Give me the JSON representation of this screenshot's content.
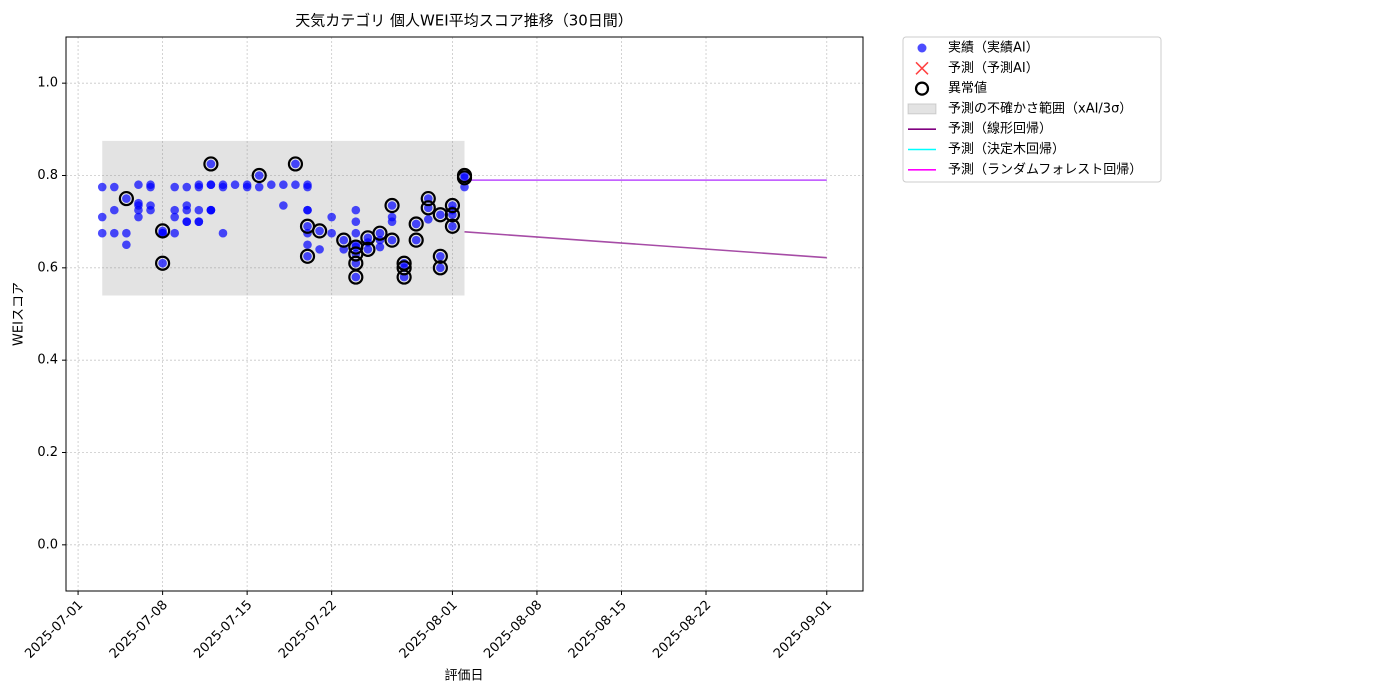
{
  "chart_data": {
    "type": "scatter",
    "title": "天気カテゴリ 個人WEI平均スコア推移（30日間）",
    "x_label": "評価日",
    "y_label": "WEIスコア",
    "xlim": [
      "2025-06-30",
      "2025-09-04"
    ],
    "xticks": [
      "2025-07-01",
      "2025-07-08",
      "2025-07-15",
      "2025-07-22",
      "2025-08-01",
      "2025-08-08",
      "2025-08-15",
      "2025-08-22",
      "2025-09-01"
    ],
    "ylim": [
      -0.1,
      1.1
    ],
    "yticks": [
      {
        "value": 0,
        "label": "0.0"
      },
      0.2,
      0.4,
      0.6,
      0.8,
      {
        "value": 1,
        "label": "1.0"
      }
    ],
    "grid": true,
    "legend": "outside upper right",
    "series": [
      {
        "name": "実績（実績AI）",
        "type": "scatter",
        "marker": "dot",
        "color": "#0000ff",
        "x": [
          "2025-07-03",
          "2025-07-03",
          "2025-07-03",
          "2025-07-04",
          "2025-07-04",
          "2025-07-04",
          "2025-07-05",
          "2025-07-05",
          "2025-07-05",
          "2025-07-06",
          "2025-07-06",
          "2025-07-06",
          "2025-07-06",
          "2025-07-06",
          "2025-07-07",
          "2025-07-07",
          "2025-07-07",
          "2025-07-07",
          "2025-07-08",
          "2025-07-08",
          "2025-07-08",
          "2025-07-08",
          "2025-07-09",
          "2025-07-09",
          "2025-07-09",
          "2025-07-09",
          "2025-07-10",
          "2025-07-10",
          "2025-07-10",
          "2025-07-10",
          "2025-07-10",
          "2025-07-11",
          "2025-07-11",
          "2025-07-11",
          "2025-07-11",
          "2025-07-11",
          "2025-07-12",
          "2025-07-12",
          "2025-07-12",
          "2025-07-12",
          "2025-07-12",
          "2025-07-12",
          "2025-07-13",
          "2025-07-13",
          "2025-07-13",
          "2025-07-14",
          "2025-07-15",
          "2025-07-15",
          "2025-07-16",
          "2025-07-16",
          "2025-07-17",
          "2025-07-18",
          "2025-07-18",
          "2025-07-19",
          "2025-07-19",
          "2025-07-20",
          "2025-07-20",
          "2025-07-20",
          "2025-07-20",
          "2025-07-20",
          "2025-07-20",
          "2025-07-20",
          "2025-07-20",
          "2025-07-21",
          "2025-07-21",
          "2025-07-22",
          "2025-07-22",
          "2025-07-23",
          "2025-07-23",
          "2025-07-24",
          "2025-07-24",
          "2025-07-24",
          "2025-07-24",
          "2025-07-24",
          "2025-07-24",
          "2025-07-24",
          "2025-07-24",
          "2025-07-25",
          "2025-07-25",
          "2025-07-25",
          "2025-07-26",
          "2025-07-26",
          "2025-07-26",
          "2025-07-27",
          "2025-07-27",
          "2025-07-27",
          "2025-07-27",
          "2025-07-28",
          "2025-07-28",
          "2025-07-28",
          "2025-07-29",
          "2025-07-29",
          "2025-07-30",
          "2025-07-30",
          "2025-07-30",
          "2025-07-31",
          "2025-07-31",
          "2025-07-31",
          "2025-08-01",
          "2025-08-01",
          "2025-08-01",
          "2025-08-01",
          "2025-08-02",
          "2025-08-02",
          "2025-08-02"
        ],
        "values": [
          0.775,
          0.71,
          0.675,
          0.725,
          0.775,
          0.675,
          0.675,
          0.65,
          0.75,
          0.74,
          0.735,
          0.78,
          0.71,
          0.725,
          0.78,
          0.735,
          0.775,
          0.725,
          0.675,
          0.61,
          0.68,
          0.675,
          0.775,
          0.725,
          0.71,
          0.675,
          0.7,
          0.775,
          0.735,
          0.725,
          0.7,
          0.775,
          0.78,
          0.7,
          0.7,
          0.725,
          0.78,
          0.725,
          0.825,
          0.725,
          0.78,
          0.725,
          0.78,
          0.775,
          0.675,
          0.78,
          0.78,
          0.775,
          0.8,
          0.775,
          0.78,
          0.735,
          0.78,
          0.825,
          0.78,
          0.775,
          0.78,
          0.725,
          0.69,
          0.725,
          0.65,
          0.625,
          0.675,
          0.68,
          0.64,
          0.71,
          0.675,
          0.66,
          0.64,
          0.725,
          0.7,
          0.675,
          0.65,
          0.58,
          0.63,
          0.61,
          0.645,
          0.64,
          0.665,
          0.655,
          0.675,
          0.645,
          0.66,
          0.735,
          0.66,
          0.7,
          0.71,
          0.61,
          0.58,
          0.6,
          0.66,
          0.695,
          0.75,
          0.73,
          0.705,
          0.6,
          0.625,
          0.715,
          0.735,
          0.715,
          0.69,
          0.725,
          0.8,
          0.795,
          0.775
        ]
      },
      {
        "name": "予測（予測AI）",
        "type": "scatter",
        "marker": "x",
        "color": "#ff0000",
        "x": [],
        "values": []
      },
      {
        "name": "異常値",
        "type": "scatter",
        "marker": "ring",
        "color": "#000000",
        "x": [
          "2025-07-05",
          "2025-07-08",
          "2025-07-08",
          "2025-07-12",
          "2025-07-16",
          "2025-07-19",
          "2025-07-20",
          "2025-07-20",
          "2025-07-21",
          "2025-07-23",
          "2025-07-24",
          "2025-07-24",
          "2025-07-24",
          "2025-07-24",
          "2025-07-25",
          "2025-07-25",
          "2025-07-26",
          "2025-07-27",
          "2025-07-27",
          "2025-07-28",
          "2025-07-28",
          "2025-07-28",
          "2025-07-29",
          "2025-07-29",
          "2025-07-30",
          "2025-07-30",
          "2025-07-31",
          "2025-07-31",
          "2025-07-31",
          "2025-08-01",
          "2025-08-01",
          "2025-08-01",
          "2025-08-02",
          "2025-08-02"
        ],
        "values": [
          0.75,
          0.61,
          0.68,
          0.825,
          0.8,
          0.825,
          0.69,
          0.625,
          0.68,
          0.66,
          0.58,
          0.63,
          0.61,
          0.645,
          0.64,
          0.665,
          0.675,
          0.735,
          0.66,
          0.61,
          0.58,
          0.6,
          0.66,
          0.695,
          0.75,
          0.73,
          0.6,
          0.625,
          0.715,
          0.735,
          0.715,
          0.69,
          0.8,
          0.795
        ]
      },
      {
        "name": "予測の不確かさ範囲（xAI/3σ）",
        "type": "band",
        "color": "#808080",
        "x": [
          "2025-07-03",
          "2025-08-02"
        ],
        "lower": [
          0.54,
          0.54
        ],
        "upper": [
          0.875,
          0.875
        ]
      },
      {
        "name": "予測（線形回帰）",
        "type": "line",
        "color": "#800080",
        "x": [
          "2025-08-02",
          "2025-09-01"
        ],
        "values": [
          0.678,
          0.622
        ]
      },
      {
        "name": "予測（決定木回帰）",
        "type": "line",
        "color": "#00ffff",
        "x": [
          "2025-08-02",
          "2025-09-01"
        ],
        "values": [
          0.79,
          0.79
        ]
      },
      {
        "name": "予測（ランダムフォレスト回帰）",
        "type": "line",
        "color": "#ff00ff",
        "x": [
          "2025-08-02",
          "2025-09-01"
        ],
        "values": [
          0.79,
          0.79
        ]
      }
    ]
  }
}
